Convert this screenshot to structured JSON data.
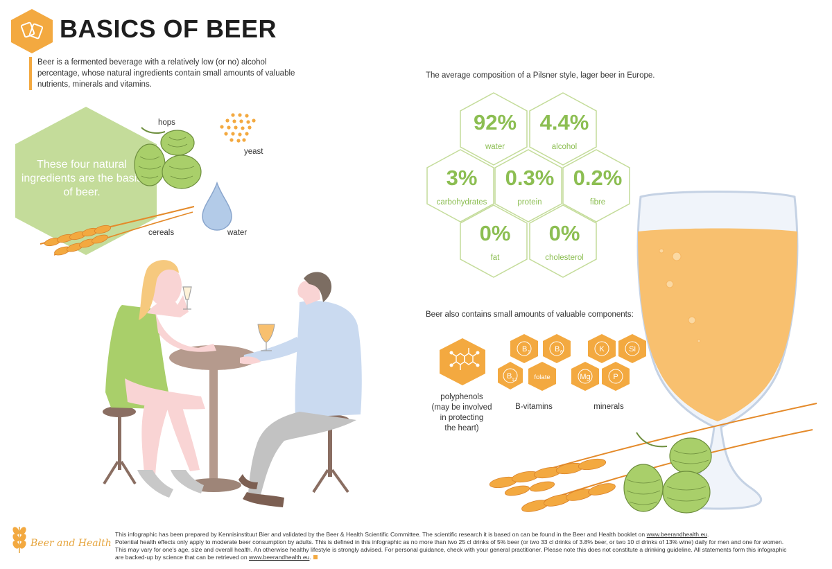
{
  "title": "BASICS OF BEER",
  "intro": "Beer is a fermented beverage with a relatively low (or no) alcohol percentage, whose natural ingredients contain small amounts of valuable nutrients, minerals and vitamins.",
  "ingredients": {
    "statement": "These four natural ingredients are the basis of beer.",
    "hops": "hops",
    "yeast": "yeast",
    "cereals": "cereals",
    "water": "water"
  },
  "composition": {
    "heading": "The average composition of a Pilsner style, lager beer in Europe.",
    "items": [
      {
        "value": "92%",
        "label": "water"
      },
      {
        "value": "4.4%",
        "label": "alcohol"
      },
      {
        "value": "3%",
        "label": "carbohydrates"
      },
      {
        "value": "0.3%",
        "label": "protein"
      },
      {
        "value": "0.2%",
        "label": "fibre"
      },
      {
        "value": "0%",
        "label": "fat"
      },
      {
        "value": "0%",
        "label": "cholesterol"
      }
    ]
  },
  "components": {
    "heading": "Beer also contains small amounts of valuable components:",
    "polyphenols": {
      "line1": "polyphenols",
      "line2": "(may be involved",
      "line3": "in protecting",
      "line4": "the heart)"
    },
    "b_vitamins": {
      "label": "B-vitamins",
      "b1": "B",
      "b1_sub": "1",
      "b6": "B",
      "b6_sub": "6",
      "b12": "B",
      "b12_sub": "12",
      "folate": "folate"
    },
    "minerals": {
      "label": "minerals",
      "k": "K",
      "si": "Si",
      "mg": "Mg",
      "p": "P"
    }
  },
  "footer": {
    "brand": "Beer and Health",
    "line1": "This infographic has been prepared by Kennisinstituut Bier and validated by the Beer & Health Scientific Committee. The scientific research it is based on can be found in the Beer and Health booklet on",
    "link1": "www.beerandhealth.eu",
    "line2": "Potential health effects only apply to moderate beer consumption by adults. This is defined in this infographic as no more than two 25 cl drinks of 5% beer (or two 33 cl drinks of 3.8% beer, or two 10 cl drinks of 13% wine) daily for men and one for women.",
    "line3": "This may vary for one's age, size and overall health. An otherwise healthy lifestyle is strongly advised. For personal guidance, check with your general practitioner. Please note this does not constitute a drinking guideline. All statements form this infographic",
    "line4": "are backed-up by science that can be retrieved on",
    "link2": "www.beerandhealth.eu"
  },
  "colors": {
    "orange": "#f3a940",
    "green": "#8cbe52",
    "light_green": "#c4dc9a",
    "beer": "#f8c06f"
  }
}
